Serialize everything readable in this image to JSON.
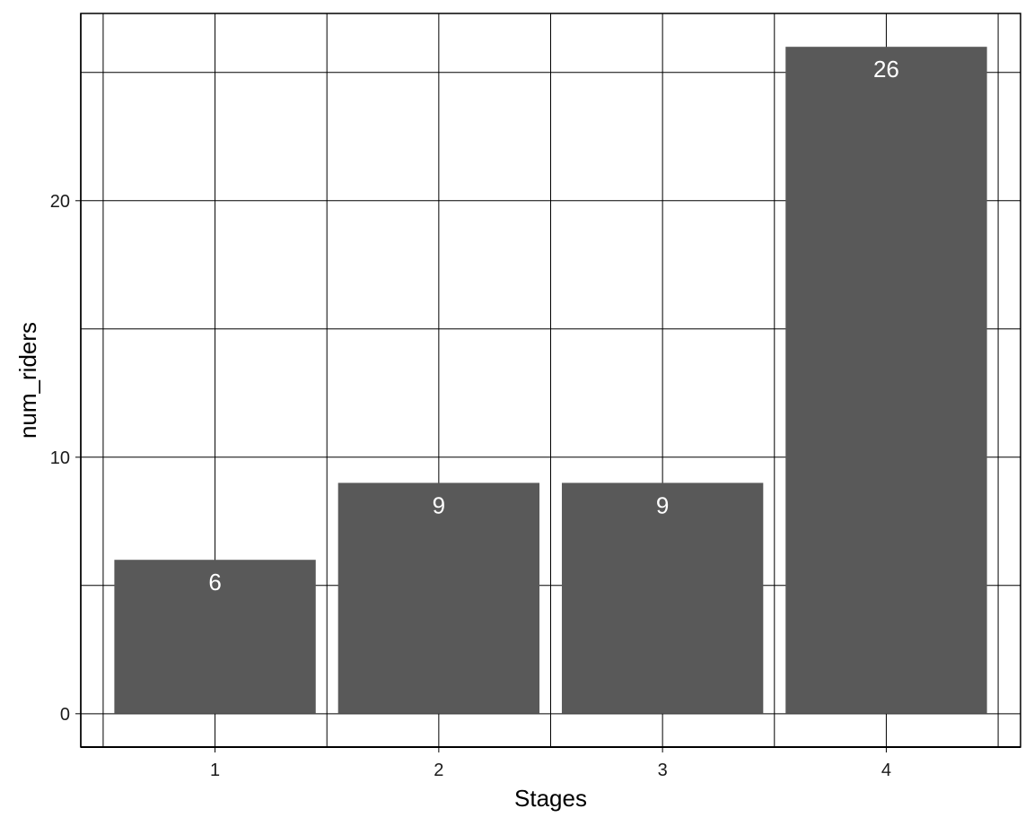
{
  "chart_data": {
    "type": "bar",
    "categories": [
      "1",
      "2",
      "3",
      "4"
    ],
    "values": [
      6,
      9,
      9,
      26
    ],
    "data_labels": [
      "6",
      "9",
      "9",
      "26"
    ],
    "title": "",
    "xlabel": "Stages",
    "ylabel": "num_riders",
    "ylim": [
      -1.3,
      27.3
    ],
    "y_ticks": [
      0,
      10,
      20
    ],
    "y_tick_labels": [
      "0",
      "10",
      "20"
    ],
    "grid": true,
    "legend": "none",
    "colors": {
      "bar": "#595959",
      "grid": "#000000",
      "background": "#ffffff",
      "bar_label": "#ffffff"
    }
  }
}
